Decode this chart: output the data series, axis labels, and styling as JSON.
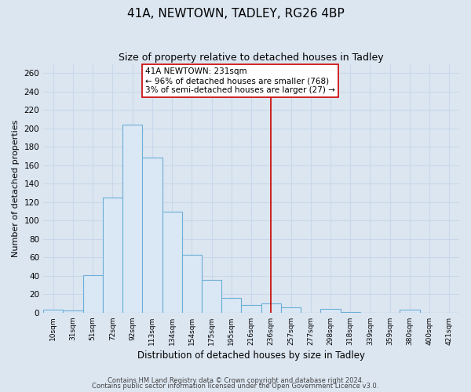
{
  "title": "41A, NEWTOWN, TADLEY, RG26 4BP",
  "subtitle": "Size of property relative to detached houses in Tadley",
  "xlabel": "Distribution of detached houses by size in Tadley",
  "ylabel": "Number of detached properties",
  "bin_labels": [
    "10sqm",
    "31sqm",
    "51sqm",
    "72sqm",
    "92sqm",
    "113sqm",
    "134sqm",
    "154sqm",
    "175sqm",
    "195sqm",
    "216sqm",
    "236sqm",
    "257sqm",
    "277sqm",
    "298sqm",
    "318sqm",
    "339sqm",
    "359sqm",
    "380sqm",
    "400sqm",
    "421sqm"
  ],
  "bar_heights": [
    3,
    2,
    41,
    125,
    204,
    168,
    110,
    63,
    36,
    16,
    8,
    10,
    6,
    0,
    4,
    1,
    0,
    0,
    3,
    0,
    0
  ],
  "bar_color": "#dae8f5",
  "bar_edge_color": "#6baed6",
  "grid_color": "#c8d8ea",
  "background_color": "#dce6f1",
  "vline_index": 11,
  "vline_color": "#cc0000",
  "annotation_title": "41A NEWTOWN: 231sqm",
  "annotation_line1": "← 96% of detached houses are smaller (768)",
  "annotation_line2": "3% of semi-detached houses are larger (27) →",
  "ylim": [
    0,
    270
  ],
  "yticks": [
    0,
    20,
    40,
    60,
    80,
    100,
    120,
    140,
    160,
    180,
    200,
    220,
    240,
    260
  ],
  "footer1": "Contains HM Land Registry data © Crown copyright and database right 2024.",
  "footer2": "Contains public sector information licensed under the Open Government Licence v3.0."
}
